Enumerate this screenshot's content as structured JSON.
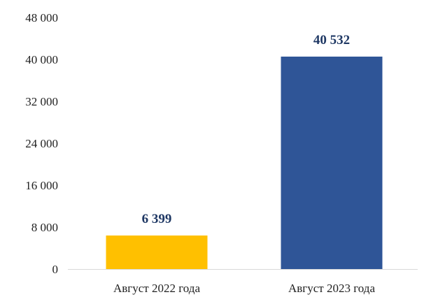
{
  "chart_data": {
    "type": "bar",
    "categories": [
      "Август 2022 года",
      "Август 2023 года"
    ],
    "values": [
      6399,
      40532
    ],
    "value_labels": [
      "6 399",
      "40 532"
    ],
    "bar_colors": [
      "#FFC000",
      "#2F5597"
    ],
    "label_color": "#1F3864",
    "ylim": [
      0,
      48000
    ],
    "yticks": [
      0,
      8000,
      16000,
      24000,
      32000,
      40000,
      48000
    ],
    "ytick_labels": [
      "0",
      "8 000",
      "16 000",
      "24 000",
      "32 000",
      "40 000",
      "48 000"
    ],
    "grid": false,
    "legend": "none",
    "title": "",
    "xlabel": "",
    "ylabel": ""
  }
}
